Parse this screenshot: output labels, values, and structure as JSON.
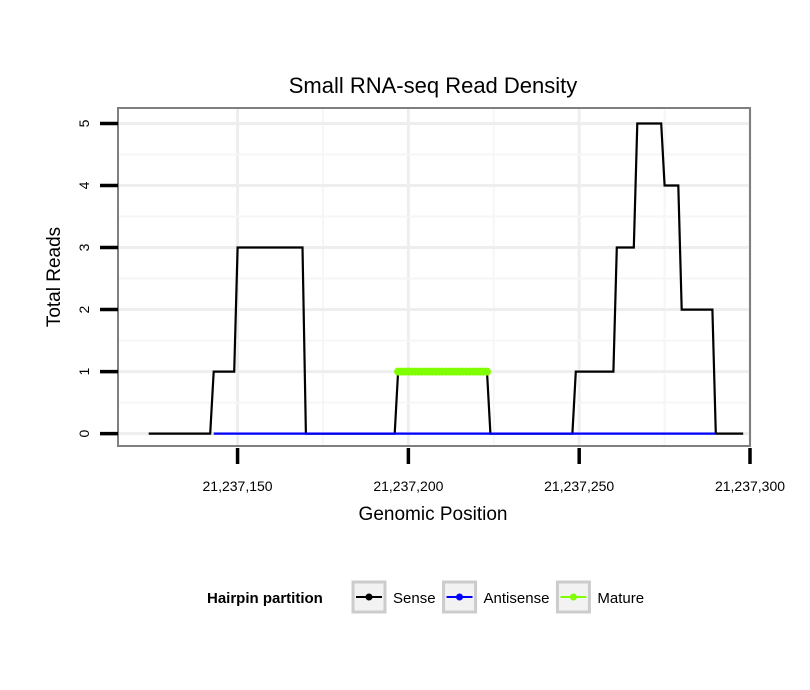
{
  "chart_data": {
    "type": "line",
    "title": "Small RNA-seq Read Density",
    "xlabel": "Genomic Position",
    "ylabel": "Total Reads",
    "xlim": [
      21237115,
      21237300
    ],
    "ylim": [
      -0.2,
      5.25
    ],
    "x_ticks": [
      {
        "value": 21237150,
        "label": "21,237,150"
      },
      {
        "value": 21237200,
        "label": "21,237,200"
      },
      {
        "value": 21237250,
        "label": "21,237,250"
      },
      {
        "value": 21237300,
        "label": "21,237,300"
      }
    ],
    "y_ticks": [
      {
        "value": 0,
        "label": "0"
      },
      {
        "value": 1,
        "label": "1"
      },
      {
        "value": 2,
        "label": "2"
      },
      {
        "value": 3,
        "label": "3"
      },
      {
        "value": 4,
        "label": "4"
      },
      {
        "value": 5,
        "label": "5"
      }
    ],
    "grid": true,
    "legend": {
      "title": "Hairpin partition",
      "position": "bottom",
      "entries": [
        {
          "name": "Sense",
          "color": "#000000"
        },
        {
          "name": "Antisense",
          "color": "#0000ff"
        },
        {
          "name": "Mature",
          "color": "#7fff00"
        }
      ]
    },
    "series": [
      {
        "name": "Sense",
        "color": "#000000",
        "points": [
          [
            21237124,
            0
          ],
          [
            21237142,
            0
          ],
          [
            21237143,
            1
          ],
          [
            21237149,
            1
          ],
          [
            21237150,
            3
          ],
          [
            21237169,
            3
          ],
          [
            21237170,
            0
          ],
          [
            21237196,
            0
          ],
          [
            21237197,
            1
          ],
          [
            21237223,
            1
          ],
          [
            21237224,
            0
          ],
          [
            21237248,
            0
          ],
          [
            21237249,
            1
          ],
          [
            21237260,
            1
          ],
          [
            21237261,
            3
          ],
          [
            21237266,
            3
          ],
          [
            21237267,
            5
          ],
          [
            21237274,
            5
          ],
          [
            21237275,
            4
          ],
          [
            21237279,
            4
          ],
          [
            21237280,
            2
          ],
          [
            21237289,
            2
          ],
          [
            21237290,
            0
          ],
          [
            21237298,
            0
          ]
        ]
      },
      {
        "name": "Antisense",
        "color": "#0000ff",
        "points": [
          [
            21237143,
            0
          ],
          [
            21237290,
            0
          ]
        ]
      },
      {
        "name": "Mature",
        "color": "#7fff00",
        "points": [
          [
            21237197,
            1
          ],
          [
            21237223,
            1
          ]
        ],
        "markers": true
      }
    ]
  }
}
